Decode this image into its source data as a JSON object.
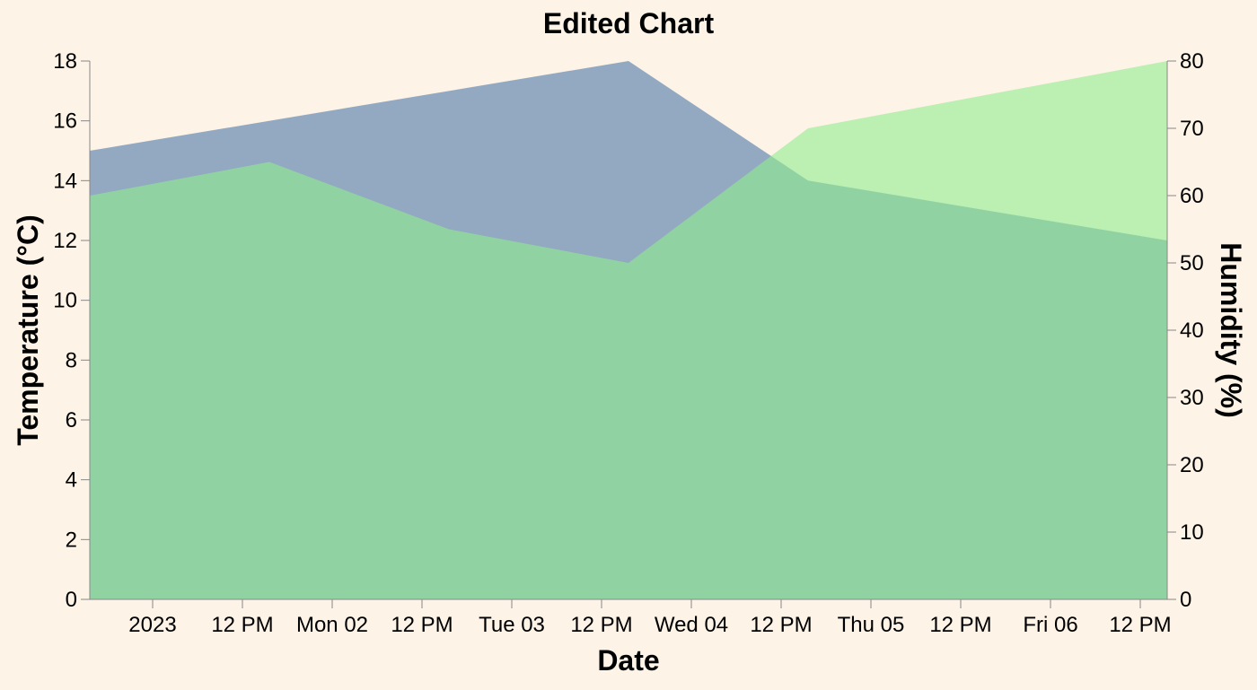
{
  "chart_data": {
    "type": "area",
    "title": "Edited Chart",
    "xlabel": "Date",
    "ylabel_left": "Temperature (°C)",
    "ylabel_right": "Humidity (%)",
    "ylim_left": [
      0,
      18
    ],
    "ylim_right": [
      0,
      80
    ],
    "yticks_left": [
      "0",
      "2",
      "4",
      "6",
      "8",
      "10",
      "12",
      "14",
      "16",
      "18"
    ],
    "yticks_right": [
      "0",
      "10",
      "20",
      "30",
      "40",
      "50",
      "60",
      "70",
      "80"
    ],
    "xlim": [
      "2022-12-31T15:36",
      "2023-01-06T15:36"
    ],
    "xticks": [
      {
        "t": "2023-01-01T00:00",
        "label": "2023"
      },
      {
        "t": "2023-01-01T12:00",
        "label": "12 PM"
      },
      {
        "t": "2023-01-02T00:00",
        "label": "Mon 02"
      },
      {
        "t": "2023-01-02T12:00",
        "label": "12 PM"
      },
      {
        "t": "2023-01-03T00:00",
        "label": "Tue 03"
      },
      {
        "t": "2023-01-03T12:00",
        "label": "12 PM"
      },
      {
        "t": "2023-01-04T00:00",
        "label": "Wed 04"
      },
      {
        "t": "2023-01-04T12:00",
        "label": "12 PM"
      },
      {
        "t": "2023-01-05T00:00",
        "label": "Thu 05"
      },
      {
        "t": "2023-01-05T12:00",
        "label": "12 PM"
      },
      {
        "t": "2023-01-06T00:00",
        "label": "Fri 06"
      },
      {
        "t": "2023-01-06T12:00",
        "label": "12 PM"
      }
    ],
    "series": [
      {
        "name": "Temperature",
        "axis": "left",
        "color": "#4c78a8",
        "opacity": 0.6,
        "points": [
          {
            "x": "2022-12-31T15:36",
            "y": 15
          },
          {
            "x": "2023-01-03T15:36",
            "y": 18
          },
          {
            "x": "2023-01-04T15:36",
            "y": 14
          },
          {
            "x": "2023-01-06T15:36",
            "y": 12
          }
        ]
      },
      {
        "name": "Humidity",
        "axis": "right",
        "color": "#90ee90",
        "opacity": 0.6,
        "points": [
          {
            "x": "2022-12-31T15:36",
            "y": 60
          },
          {
            "x": "2023-01-01T15:36",
            "y": 65
          },
          {
            "x": "2023-01-02T15:36",
            "y": 55
          },
          {
            "x": "2023-01-03T15:36",
            "y": 50
          },
          {
            "x": "2023-01-04T15:36",
            "y": 70
          },
          {
            "x": "2023-01-06T15:36",
            "y": 80
          }
        ]
      }
    ],
    "grid": false,
    "legend": "none"
  }
}
